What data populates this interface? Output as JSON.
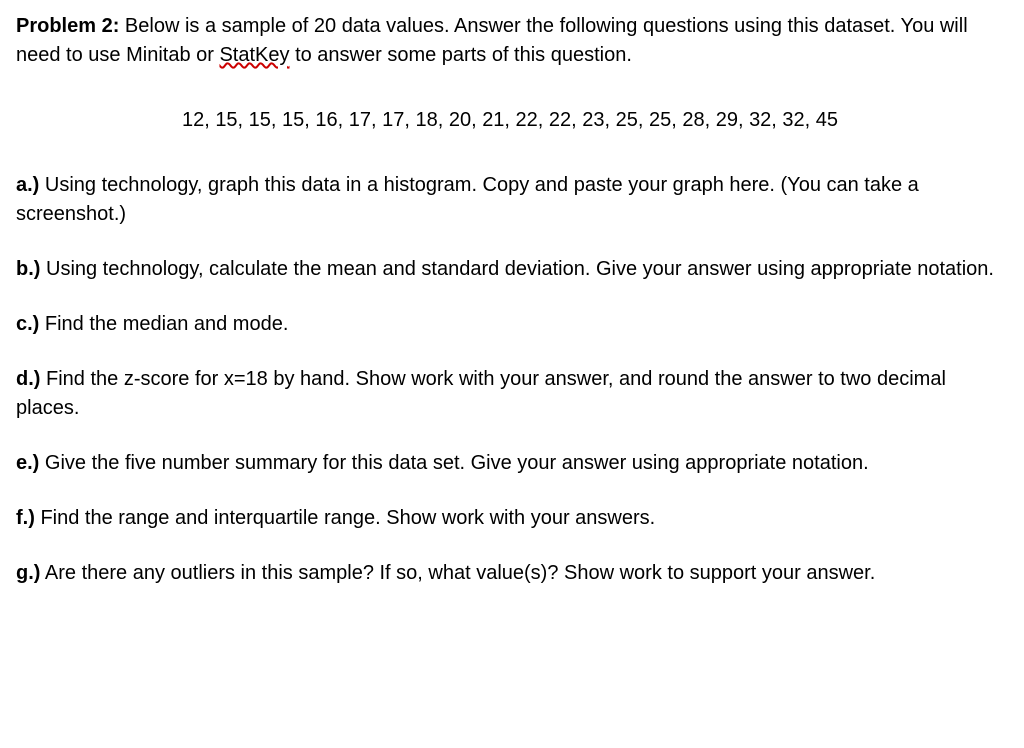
{
  "intro": {
    "label": "Problem 2:",
    "text_before_link": " Below is a sample of 20 data values. Answer the following questions using this dataset. You will need to use Minitab or ",
    "link_word": "StatKey",
    "text_after_link": " to answer some parts of this question."
  },
  "dataset": "12, 15, 15, 15, 16, 17, 17, 18, 20, 21, 22, 22, 23, 25, 25, 28, 29, 32, 32, 45",
  "questions": {
    "a": {
      "label": "a.)",
      "text": " Using technology, graph this data in a histogram. Copy and paste your graph here. (You can take a screenshot.)"
    },
    "b": {
      "label": "b.)",
      "text": " Using technology, calculate the mean and standard deviation. Give your answer using appropriate notation."
    },
    "c": {
      "label": "c.)",
      "text": " Find the median and mode."
    },
    "d": {
      "label": "d.)",
      "text": " Find the z-score for x=18 by hand. Show work with your answer, and round the answer to two decimal places."
    },
    "e": {
      "label": "e.)",
      "text": " Give the five number summary for this data set. Give your answer using appropriate notation."
    },
    "f": {
      "label": "f.)",
      "text": " Find the range and interquartile range. Show work with your answers."
    },
    "g": {
      "label": "g.)",
      "text": " Are there any outliers in this sample? If so, what value(s)? Show work to support your answer."
    }
  }
}
